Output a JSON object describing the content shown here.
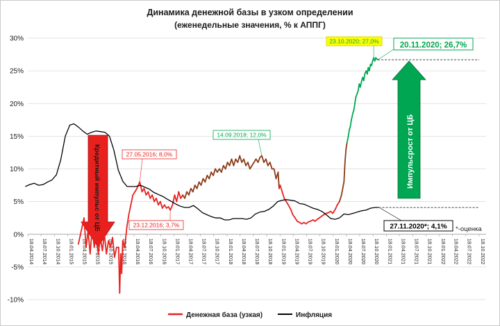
{
  "chart_data": {
    "type": "line",
    "title": "Динамика денежной базы в узком определении",
    "subtitle": "(еженедельные значения, % к АППГ)",
    "xlabel": "",
    "ylabel": "",
    "ylim": [
      -10,
      30
    ],
    "yticks": [
      "-10%",
      "-5%",
      "0%",
      "5%",
      "10%",
      "15%",
      "20%",
      "25%",
      "30%"
    ],
    "grid": "horizontal",
    "legend_position": "bottom",
    "x_tick_labels": [
      "18.04.2014",
      "18.07.2014",
      "18.10.2014",
      "18.01.2015",
      "18.04.2015",
      "18.07.2015",
      "18.10.2015",
      "18.01.2016",
      "18.04.2016",
      "18.07.2016",
      "18.10.2016",
      "18.01.2017",
      "18.04.2017",
      "18.07.2017",
      "18.10.2017",
      "18.01.2018",
      "18.04.2018",
      "18.07.2018",
      "18.10.2018",
      "18.01.2019",
      "18.04.2019",
      "18.07.2019",
      "18.10.2019",
      "18.01.2020",
      "18.04.2020",
      "18.07.2020",
      "18.10.2020",
      "18.01.2021",
      "18.04.2021",
      "18.07.2021",
      "18.10.2021",
      "18.01.2022",
      "18.04.2022",
      "18.07.2022",
      "18.10.2022"
    ],
    "series": [
      {
        "name": "Денежная база (узкая)",
        "color": "#e8201e",
        "points": [
          [
            "2015-04-01",
            -1.5
          ],
          [
            "2015-05-10",
            2.5
          ],
          [
            "2015-05-24",
            -2
          ],
          [
            "2015-06-07",
            0.5
          ],
          [
            "2015-06-21",
            -3
          ],
          [
            "2015-07-05",
            1
          ],
          [
            "2015-07-19",
            -2
          ],
          [
            "2015-08-02",
            0.5
          ],
          [
            "2015-08-16",
            -3
          ],
          [
            "2015-08-30",
            -0.5
          ],
          [
            "2015-09-13",
            -2.5
          ],
          [
            "2015-09-27",
            0
          ],
          [
            "2015-10-11",
            -3
          ],
          [
            "2015-10-25",
            -1
          ],
          [
            "2015-11-08",
            -2
          ],
          [
            "2015-11-22",
            -0.5
          ],
          [
            "2015-12-06",
            -3.5
          ],
          [
            "2015-12-20",
            -2
          ],
          [
            "2016-01-03",
            -2
          ],
          [
            "2016-01-10",
            -9
          ],
          [
            "2016-01-17",
            -3
          ],
          [
            "2016-01-24",
            -6
          ],
          [
            "2016-01-31",
            -1
          ],
          [
            "2016-02-14",
            -2
          ],
          [
            "2016-02-28",
            1
          ],
          [
            "2016-03-13",
            3
          ],
          [
            "2016-03-27",
            4.5
          ],
          [
            "2016-04-10",
            6
          ],
          [
            "2016-04-24",
            6.5
          ],
          [
            "2016-05-08",
            7
          ],
          [
            "2016-05-27",
            8
          ],
          [
            "2016-06-12",
            6.5
          ],
          [
            "2016-06-26",
            7
          ],
          [
            "2016-07-10",
            6
          ],
          [
            "2016-07-24",
            6.5
          ],
          [
            "2016-08-07",
            5.5
          ],
          [
            "2016-08-21",
            6
          ],
          [
            "2016-09-04",
            5
          ],
          [
            "2016-09-18",
            5.5
          ],
          [
            "2016-10-02",
            4.5
          ],
          [
            "2016-10-16",
            5
          ],
          [
            "2016-10-30",
            4
          ],
          [
            "2016-11-13",
            4.5
          ],
          [
            "2016-11-27",
            4
          ],
          [
            "2016-12-11",
            4.2
          ],
          [
            "2016-12-23",
            3.7
          ],
          [
            "2017-01-08",
            4.5
          ],
          [
            "2017-01-22",
            6
          ],
          [
            "2017-02-05",
            5
          ],
          [
            "2017-02-19",
            6.5
          ],
          [
            "2017-03-05",
            5.5
          ],
          [
            "2017-03-19",
            6
          ],
          [
            "2017-04-02",
            5.5
          ],
          [
            "2017-04-16",
            6.5
          ],
          [
            "2017-04-30",
            6
          ],
          [
            "2017-05-14",
            7
          ],
          [
            "2017-05-28",
            6.5
          ],
          [
            "2017-06-11",
            7.5
          ],
          [
            "2017-06-25",
            7
          ],
          [
            "2017-07-09",
            8
          ],
          [
            "2017-07-23",
            7.5
          ],
          [
            "2017-08-06",
            8.5
          ],
          [
            "2017-08-20",
            8
          ],
          [
            "2017-09-03",
            9
          ],
          [
            "2017-09-17",
            8.5
          ],
          [
            "2017-10-01",
            9.5
          ],
          [
            "2017-10-15",
            9
          ],
          [
            "2017-10-29",
            10
          ],
          [
            "2017-11-12",
            9.5
          ],
          [
            "2017-11-26",
            10
          ],
          [
            "2017-12-10",
            9.5
          ],
          [
            "2017-12-24",
            10.5
          ],
          [
            "2018-01-07",
            10
          ],
          [
            "2018-01-21",
            11
          ],
          [
            "2018-02-04",
            10.5
          ],
          [
            "2018-02-18",
            11.5
          ],
          [
            "2018-03-04",
            10.5
          ],
          [
            "2018-03-18",
            11.5
          ],
          [
            "2018-04-01",
            11
          ],
          [
            "2018-04-15",
            12
          ],
          [
            "2018-04-29",
            11
          ],
          [
            "2018-05-13",
            11.5
          ],
          [
            "2018-05-27",
            10.5
          ],
          [
            "2018-06-10",
            11
          ],
          [
            "2018-06-24",
            10
          ],
          [
            "2018-07-08",
            10.5
          ],
          [
            "2018-07-22",
            11
          ],
          [
            "2018-08-05",
            11.5
          ],
          [
            "2018-08-19",
            11
          ],
          [
            "2018-09-02",
            11.8
          ],
          [
            "2018-09-14",
            12
          ],
          [
            "2018-09-28",
            11
          ],
          [
            "2018-10-12",
            11.5
          ],
          [
            "2018-10-26",
            10.5
          ],
          [
            "2018-11-09",
            11
          ],
          [
            "2018-11-23",
            10
          ],
          [
            "2018-12-07",
            10
          ],
          [
            "2018-12-21",
            8.5
          ],
          [
            "2019-01-04",
            9.5
          ],
          [
            "2019-01-11",
            7
          ],
          [
            "2019-01-18",
            7.5
          ],
          [
            "2019-02-01",
            6.5
          ],
          [
            "2019-02-15",
            5.5
          ],
          [
            "2019-03-01",
            5
          ],
          [
            "2019-03-15",
            4.5
          ],
          [
            "2019-04-01",
            3.8
          ],
          [
            "2019-04-15",
            3
          ],
          [
            "2019-05-01",
            2.5
          ],
          [
            "2019-05-15",
            2
          ],
          [
            "2019-06-01",
            1.8
          ],
          [
            "2019-06-15",
            1.6
          ],
          [
            "2019-07-01",
            1.8
          ],
          [
            "2019-07-15",
            1.6
          ],
          [
            "2019-08-01",
            1.9
          ],
          [
            "2019-08-15",
            2
          ],
          [
            "2019-09-01",
            2.2
          ],
          [
            "2019-09-15",
            2
          ],
          [
            "2019-10-01",
            2.3
          ],
          [
            "2019-10-15",
            2.5
          ],
          [
            "2019-11-01",
            2.8
          ],
          [
            "2019-11-15",
            3
          ],
          [
            "2019-12-01",
            3.2
          ],
          [
            "2019-12-15",
            3.3
          ],
          [
            "2020-01-01",
            3.5
          ],
          [
            "2020-01-15",
            3.2
          ],
          [
            "2020-02-01",
            3.8
          ],
          [
            "2020-02-15",
            4.5
          ],
          [
            "2020-03-01",
            5
          ],
          [
            "2020-03-15",
            6
          ],
          [
            "2020-04-01",
            8
          ],
          [
            "2020-04-08",
            11
          ],
          [
            "2020-04-15",
            13
          ],
          [
            "2020-04-22",
            14
          ],
          [
            "2020-05-01",
            15
          ],
          [
            "2020-05-08",
            16
          ],
          [
            "2020-05-15",
            16.5
          ],
          [
            "2020-05-22",
            17.5
          ],
          [
            "2020-06-01",
            18.5
          ],
          [
            "2020-06-08",
            19
          ],
          [
            "2020-06-15",
            20
          ],
          [
            "2020-06-22",
            21
          ],
          [
            "2020-07-01",
            21.5
          ],
          [
            "2020-07-08",
            22
          ],
          [
            "2020-07-15",
            23
          ],
          [
            "2020-07-22",
            22.5
          ],
          [
            "2020-08-01",
            23.5
          ],
          [
            "2020-08-08",
            24
          ],
          [
            "2020-08-15",
            23.5
          ],
          [
            "2020-08-22",
            24.5
          ],
          [
            "2020-09-01",
            25
          ],
          [
            "2020-09-08",
            24.5
          ],
          [
            "2020-09-15",
            25.5
          ],
          [
            "2020-09-22",
            25
          ],
          [
            "2020-10-01",
            26
          ],
          [
            "2020-10-08",
            25.8
          ],
          [
            "2020-10-15",
            26.5
          ],
          [
            "2020-10-23",
            27
          ],
          [
            "2020-10-30",
            26.5
          ],
          [
            "2020-11-06",
            27
          ],
          [
            "2020-11-13",
            26.8
          ],
          [
            "2020-11-20",
            26.7
          ]
        ]
      },
      {
        "name": "Инфляция",
        "color": "#000000",
        "points": [
          [
            "2014-04-01",
            7.3
          ],
          [
            "2014-05-01",
            7.6
          ],
          [
            "2014-06-01",
            7.8
          ],
          [
            "2014-07-01",
            7.5
          ],
          [
            "2014-08-01",
            7.6
          ],
          [
            "2014-09-01",
            8.0
          ],
          [
            "2014-10-01",
            8.3
          ],
          [
            "2014-11-01",
            9.1
          ],
          [
            "2014-12-01",
            11.4
          ],
          [
            "2015-01-01",
            15.0
          ],
          [
            "2015-02-01",
            16.7
          ],
          [
            "2015-03-01",
            16.9
          ],
          [
            "2015-04-01",
            16.4
          ],
          [
            "2015-05-01",
            15.8
          ],
          [
            "2015-06-01",
            15.3
          ],
          [
            "2015-07-01",
            15.6
          ],
          [
            "2015-08-01",
            15.8
          ],
          [
            "2015-09-01",
            15.7
          ],
          [
            "2015-10-01",
            15.6
          ],
          [
            "2015-11-01",
            15.0
          ],
          [
            "2015-12-01",
            12.9
          ],
          [
            "2016-01-01",
            9.8
          ],
          [
            "2016-02-01",
            8.1
          ],
          [
            "2016-03-01",
            7.3
          ],
          [
            "2016-04-01",
            7.3
          ],
          [
            "2016-05-01",
            7.3
          ],
          [
            "2016-06-01",
            7.5
          ],
          [
            "2016-07-01",
            7.2
          ],
          [
            "2016-08-01",
            6.9
          ],
          [
            "2016-09-01",
            6.4
          ],
          [
            "2016-10-01",
            6.1
          ],
          [
            "2016-11-01",
            5.8
          ],
          [
            "2016-12-01",
            5.4
          ],
          [
            "2017-01-01",
            5.0
          ],
          [
            "2017-02-01",
            4.6
          ],
          [
            "2017-03-01",
            4.3
          ],
          [
            "2017-04-01",
            4.1
          ],
          [
            "2017-05-01",
            4.1
          ],
          [
            "2017-06-01",
            4.4
          ],
          [
            "2017-07-01",
            3.9
          ],
          [
            "2017-08-01",
            3.3
          ],
          [
            "2017-09-01",
            3.0
          ],
          [
            "2017-10-01",
            2.7
          ],
          [
            "2017-11-01",
            2.5
          ],
          [
            "2017-12-01",
            2.5
          ],
          [
            "2018-01-01",
            2.2
          ],
          [
            "2018-02-01",
            2.2
          ],
          [
            "2018-03-01",
            2.4
          ],
          [
            "2018-04-01",
            2.4
          ],
          [
            "2018-05-01",
            2.4
          ],
          [
            "2018-06-01",
            2.3
          ],
          [
            "2018-07-01",
            2.5
          ],
          [
            "2018-08-01",
            3.1
          ],
          [
            "2018-09-01",
            3.4
          ],
          [
            "2018-10-01",
            3.5
          ],
          [
            "2018-11-01",
            3.8
          ],
          [
            "2018-12-01",
            4.3
          ],
          [
            "2019-01-01",
            5.0
          ],
          [
            "2019-02-01",
            5.2
          ],
          [
            "2019-03-01",
            5.3
          ],
          [
            "2019-04-01",
            5.2
          ],
          [
            "2019-05-01",
            5.1
          ],
          [
            "2019-06-01",
            4.7
          ],
          [
            "2019-07-01",
            4.6
          ],
          [
            "2019-08-01",
            4.3
          ],
          [
            "2019-09-01",
            4.0
          ],
          [
            "2019-10-01",
            3.8
          ],
          [
            "2019-11-01",
            3.5
          ],
          [
            "2019-12-01",
            3.0
          ],
          [
            "2020-01-01",
            2.4
          ],
          [
            "2020-02-01",
            2.3
          ],
          [
            "2020-03-01",
            2.5
          ],
          [
            "2020-04-01",
            3.1
          ],
          [
            "2020-05-01",
            3.0
          ],
          [
            "2020-06-01",
            3.2
          ],
          [
            "2020-07-01",
            3.4
          ],
          [
            "2020-08-01",
            3.6
          ],
          [
            "2020-09-01",
            3.7
          ],
          [
            "2020-10-01",
            4.0
          ],
          [
            "2020-11-01",
            4.1
          ],
          [
            "2020-11-27",
            4.1
          ]
        ]
      }
    ],
    "annotations": [
      {
        "text": "27.05.2016; 8,0%",
        "date": "2016-05-27",
        "value": 8.0,
        "color": "#e8201e"
      },
      {
        "text": "23.12.2016; 3,7%",
        "date": "2016-12-23",
        "value": 3.7,
        "color": "#e8201e"
      },
      {
        "text": "14.09.2018; 12,0%",
        "date": "2018-09-14",
        "value": 12.0,
        "color": "#00a651"
      },
      {
        "text": "23.10.2020; 27,0%",
        "date": "2020-10-23",
        "value": 27.0,
        "color": "#00a651",
        "background": "#ffff00"
      },
      {
        "text": "20.11.2020; 26,7%",
        "date": "2020-11-20",
        "value": 26.7,
        "color": "#00a651"
      },
      {
        "text": "27.11.2020*; 4,1%",
        "date": "2020-11-27",
        "value": 4.1,
        "color": "#000000"
      }
    ],
    "callouts": {
      "down_arrow_text": "Кредитный импульс от ЦБ",
      "down_arrow_color": "#e8201e",
      "up_arrow_text": "Импульсрост от ЦБ",
      "up_arrow_color": "#00a651"
    },
    "footnote": "*-оценка"
  }
}
